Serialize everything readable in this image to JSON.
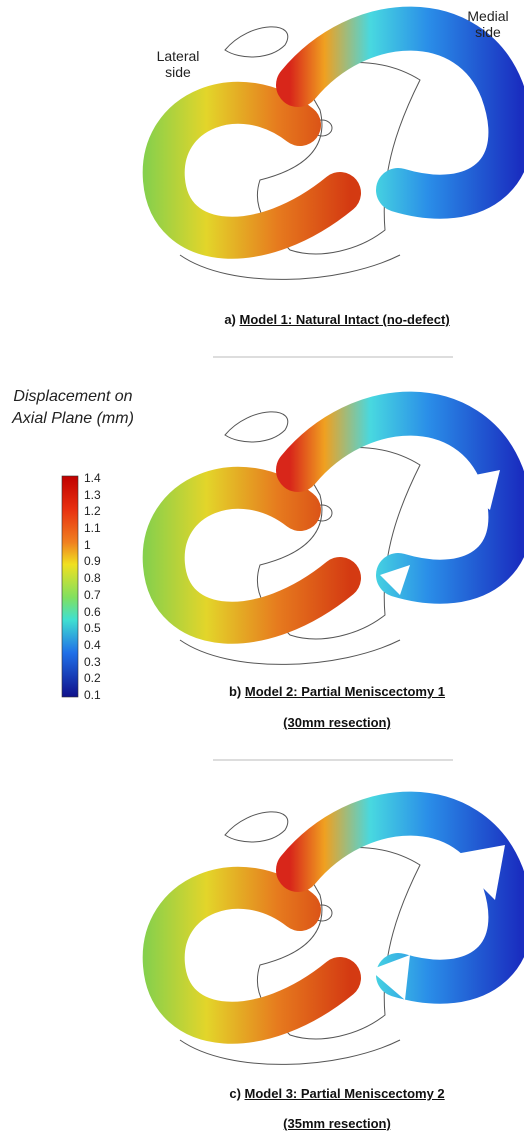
{
  "annotations": {
    "lateral": "Lateral side",
    "medial": "Medial side"
  },
  "colorbar": {
    "title": "Displacement on Axial Plane (mm)",
    "ticks": [
      1.4,
      1.3,
      1.2,
      1.1,
      1,
      0.9,
      0.8,
      0.7,
      0.6,
      0.5,
      0.4,
      0.3,
      0.2,
      0.1
    ]
  },
  "panels": [
    {
      "label": "a)",
      "title": "Model 1: Natural Intact (no-defect)"
    },
    {
      "label": "b)",
      "title": "Model 2: Partial Meniscectomy 1",
      "subtitle": "(30mm resection)"
    },
    {
      "label": "c)",
      "title": "Model 3: Partial Meniscectomy 2",
      "subtitle": "(35mm resection)"
    }
  ]
}
